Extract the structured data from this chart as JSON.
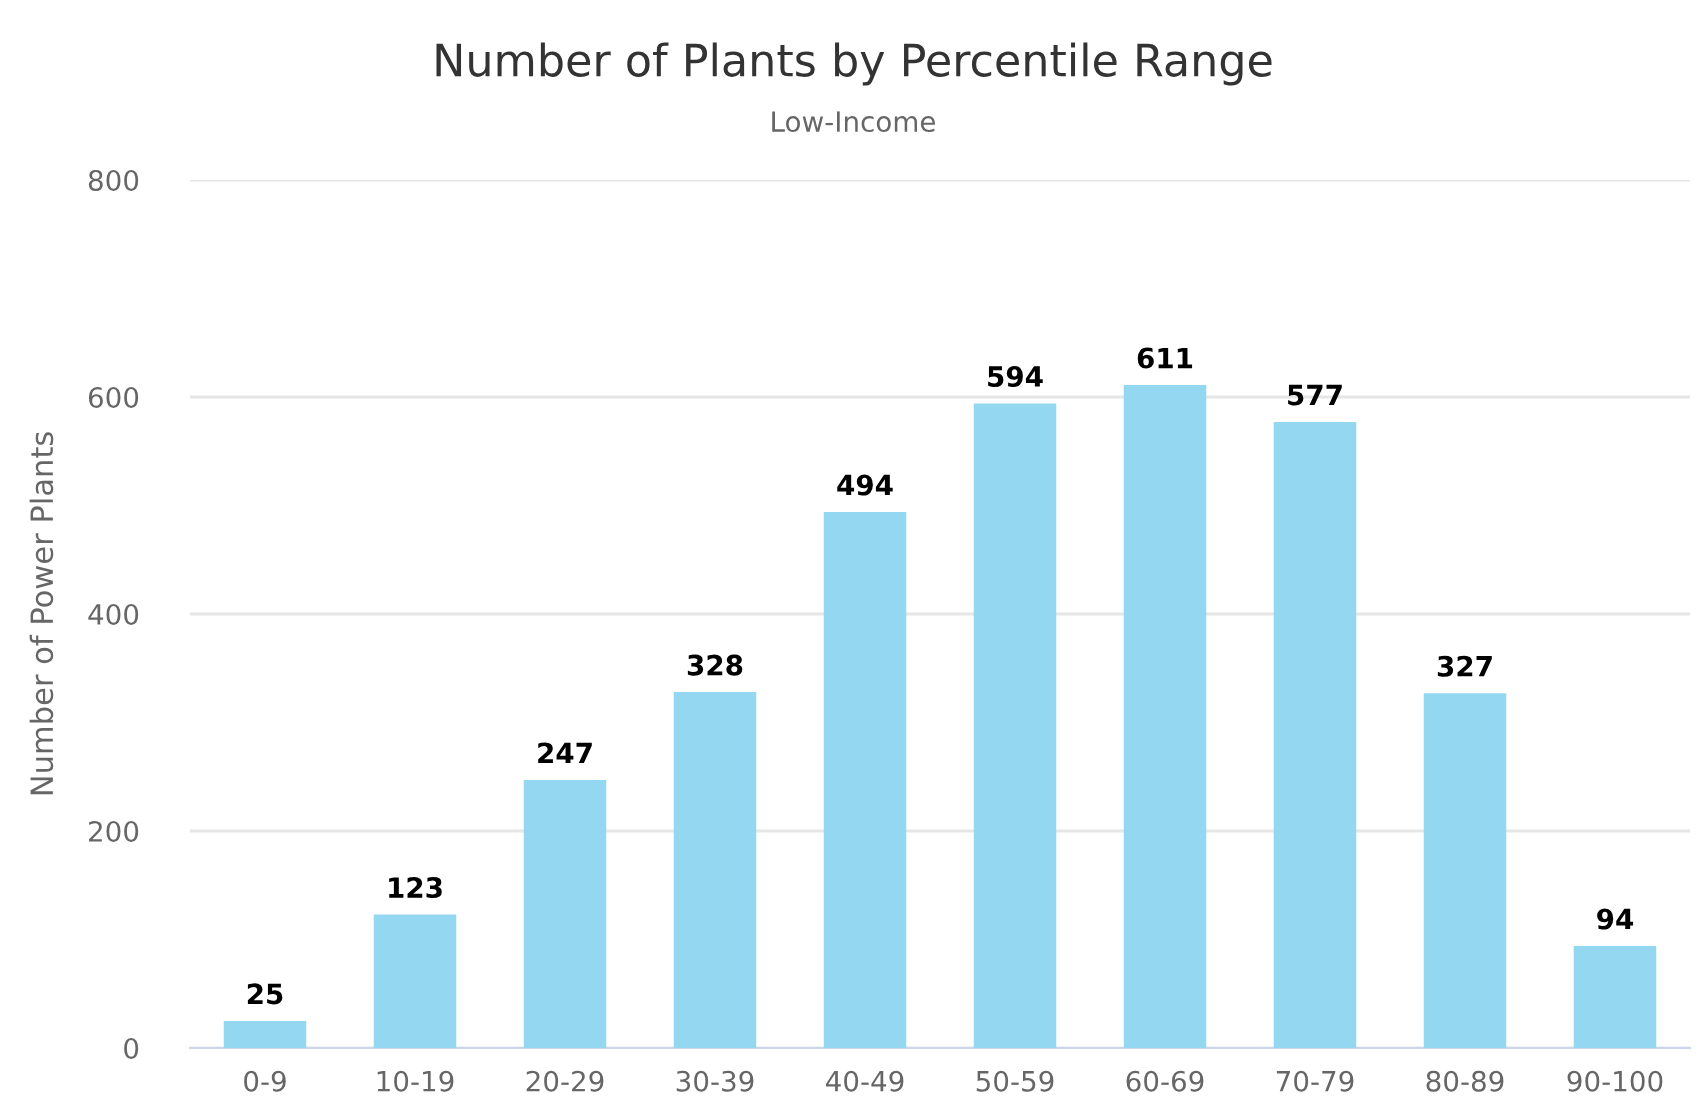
{
  "chart_data": {
    "type": "bar",
    "title": "Number of Plants by Percentile Range",
    "subtitle": "Low-Income",
    "ylabel": "Number of Power Plants",
    "categories": [
      "0-9",
      "10-19",
      "20-29",
      "30-39",
      "40-49",
      "50-59",
      "60-69",
      "70-79",
      "80-89",
      "90-100"
    ],
    "values": [
      25,
      123,
      247,
      328,
      494,
      594,
      611,
      577,
      327,
      94
    ],
    "color": "#93d8f0",
    "ylim": [
      0,
      800
    ],
    "yticks": [
      0,
      200,
      400,
      600,
      800
    ],
    "grid": "y",
    "data_labels": true,
    "legend": false
  }
}
